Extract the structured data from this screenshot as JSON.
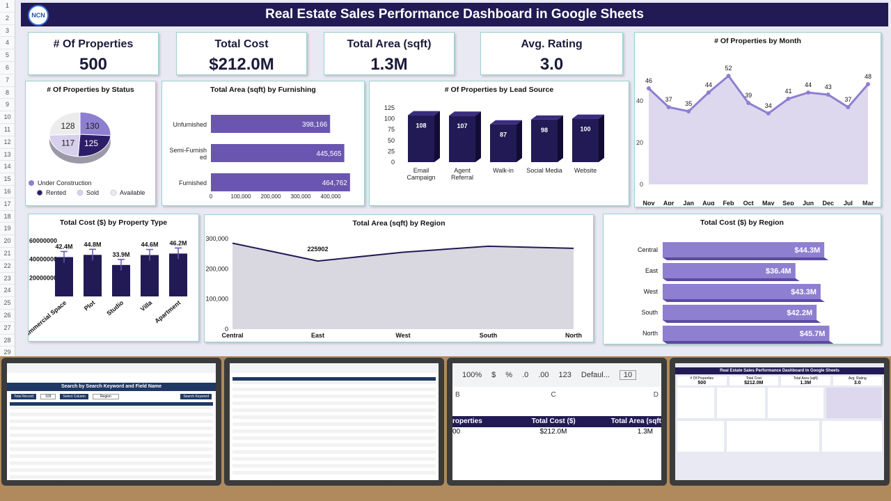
{
  "header": {
    "title": "Real Estate Sales Performance Dashboard in Google Sheets",
    "logo_text": "NCN"
  },
  "row_numbers": [
    "1",
    "2",
    "3",
    "4",
    "5",
    "6",
    "7",
    "8",
    "9",
    "10",
    "11",
    "12",
    "13",
    "14",
    "15",
    "16",
    "17",
    "18",
    "19",
    "20",
    "21",
    "22",
    "23",
    "24",
    "25",
    "26",
    "27",
    "28",
    "29"
  ],
  "kpis": [
    {
      "label": "# Of Properties",
      "value": "500"
    },
    {
      "label": "Total Cost",
      "value": "$212.0M"
    },
    {
      "label": "Total Area (sqft)",
      "value": "1.3M"
    },
    {
      "label": "Avg. Rating",
      "value": "3.0"
    }
  ],
  "colors": {
    "dark": "#221a54",
    "mid": "#6a56b0",
    "light": "#8e7fd0",
    "pale": "#ddd8ee",
    "border": "#9bd0cf"
  },
  "chart_data": [
    {
      "type": "line",
      "title": "# Of Properties by Month",
      "categories": [
        "Nov",
        "Apr",
        "Jan",
        "Aug",
        "Feb",
        "Oct",
        "May",
        "Sep",
        "Jun",
        "Dec",
        "Jul",
        "Mar"
      ],
      "values": [
        46,
        37,
        35,
        44,
        52,
        39,
        34,
        41,
        44,
        43,
        37,
        48
      ],
      "ylim": [
        0,
        60
      ],
      "yticks": [
        "0",
        "20",
        "40"
      ]
    },
    {
      "type": "pie",
      "title": "# Of Properties by Status",
      "slices": [
        {
          "name": "Under Construction",
          "value": 130,
          "color": "#8e7fd0"
        },
        {
          "name": "Rented",
          "value": 125,
          "color": "#2d1d67"
        },
        {
          "name": "Sold",
          "value": 117,
          "color": "#d6d0ec"
        },
        {
          "name": "Available",
          "value": 128,
          "color": "#ececec"
        }
      ]
    },
    {
      "type": "bar",
      "orientation": "horizontal",
      "title": "Total Area (sqft) by Furnishing",
      "categories": [
        "Unfurnished",
        "Semi-Furnished",
        "Furnished"
      ],
      "values": [
        398166,
        445565,
        464762
      ],
      "labels": [
        "398,166",
        "445,565",
        "464,762"
      ],
      "xlim": [
        0,
        500000
      ],
      "xticks": [
        "0",
        "100,000",
        "200,000",
        "300,000",
        "400,000"
      ]
    },
    {
      "type": "bar",
      "title": "# Of Properties by Lead Source",
      "categories": [
        "Email Campaign",
        "Agent Referral",
        "Walk-in",
        "Social Media",
        "Website"
      ],
      "values": [
        108,
        107,
        87,
        98,
        100
      ],
      "ylim": [
        0,
        125
      ],
      "yticks": [
        "0",
        "25",
        "50",
        "75",
        "100",
        "125"
      ]
    },
    {
      "type": "bar",
      "title": "Total Cost ($) by Property Type",
      "categories": [
        "Commercial Space",
        "Plot",
        "Studio",
        "Villa",
        "Apartment"
      ],
      "values": [
        42.4,
        44.8,
        33.9,
        44.6,
        46.2
      ],
      "labels": [
        "42.4M",
        "44.8M",
        "33.9M",
        "44.6M",
        "46.2M"
      ],
      "yticks": [
        "20000000",
        "40000000",
        "60000000"
      ]
    },
    {
      "type": "area",
      "title": "Total Area (sqft) by Region",
      "categories": [
        "Central",
        "East",
        "West",
        "South",
        "North"
      ],
      "values": [
        285000,
        225902,
        255000,
        275000,
        268000
      ],
      "annotation": "225902",
      "ylim": [
        0,
        300000
      ],
      "yticks": [
        "0",
        "100,000",
        "200,000",
        "300,000"
      ]
    },
    {
      "type": "bar",
      "orientation": "horizontal",
      "title": "Total Cost ($) by Region",
      "categories": [
        "Central",
        "East",
        "West",
        "South",
        "North"
      ],
      "values": [
        44.3,
        36.4,
        43.3,
        42.2,
        45.7
      ],
      "labels": [
        "$44.3M",
        "$36.4M",
        "$43.3M",
        "$42.2M",
        "$45.7M"
      ]
    }
  ],
  "monitors": {
    "m1_title": "Search by Search Keyword and Field Name",
    "m1_total": "Total Record",
    "m1_total_val": "103",
    "m1_select": "Select Column",
    "m1_region": "Region",
    "m1_btn": "Search Keyword",
    "m3_zoom": "100%",
    "m3_toolbar": [
      "$",
      "%",
      ".0",
      ".00",
      "123",
      "Defaul...",
      "10"
    ],
    "m3_cols": [
      "B",
      "C",
      "D"
    ],
    "m3_headers": [
      "roperties",
      "Total Cost ($)",
      "Total Area (sqft"
    ],
    "m3_values": [
      "00",
      "$212.0M",
      "1.3M"
    ],
    "m4_title": "Real Estate Sales Performance Dashboard in Google Sheets",
    "m4_kpis": [
      "# Of Properties",
      "Total Cost",
      "Total Area (sqft)",
      "Avg. Rating"
    ],
    "m4_kpi_vals": [
      "500",
      "$212.0M",
      "1.3M",
      "3.0"
    ]
  }
}
